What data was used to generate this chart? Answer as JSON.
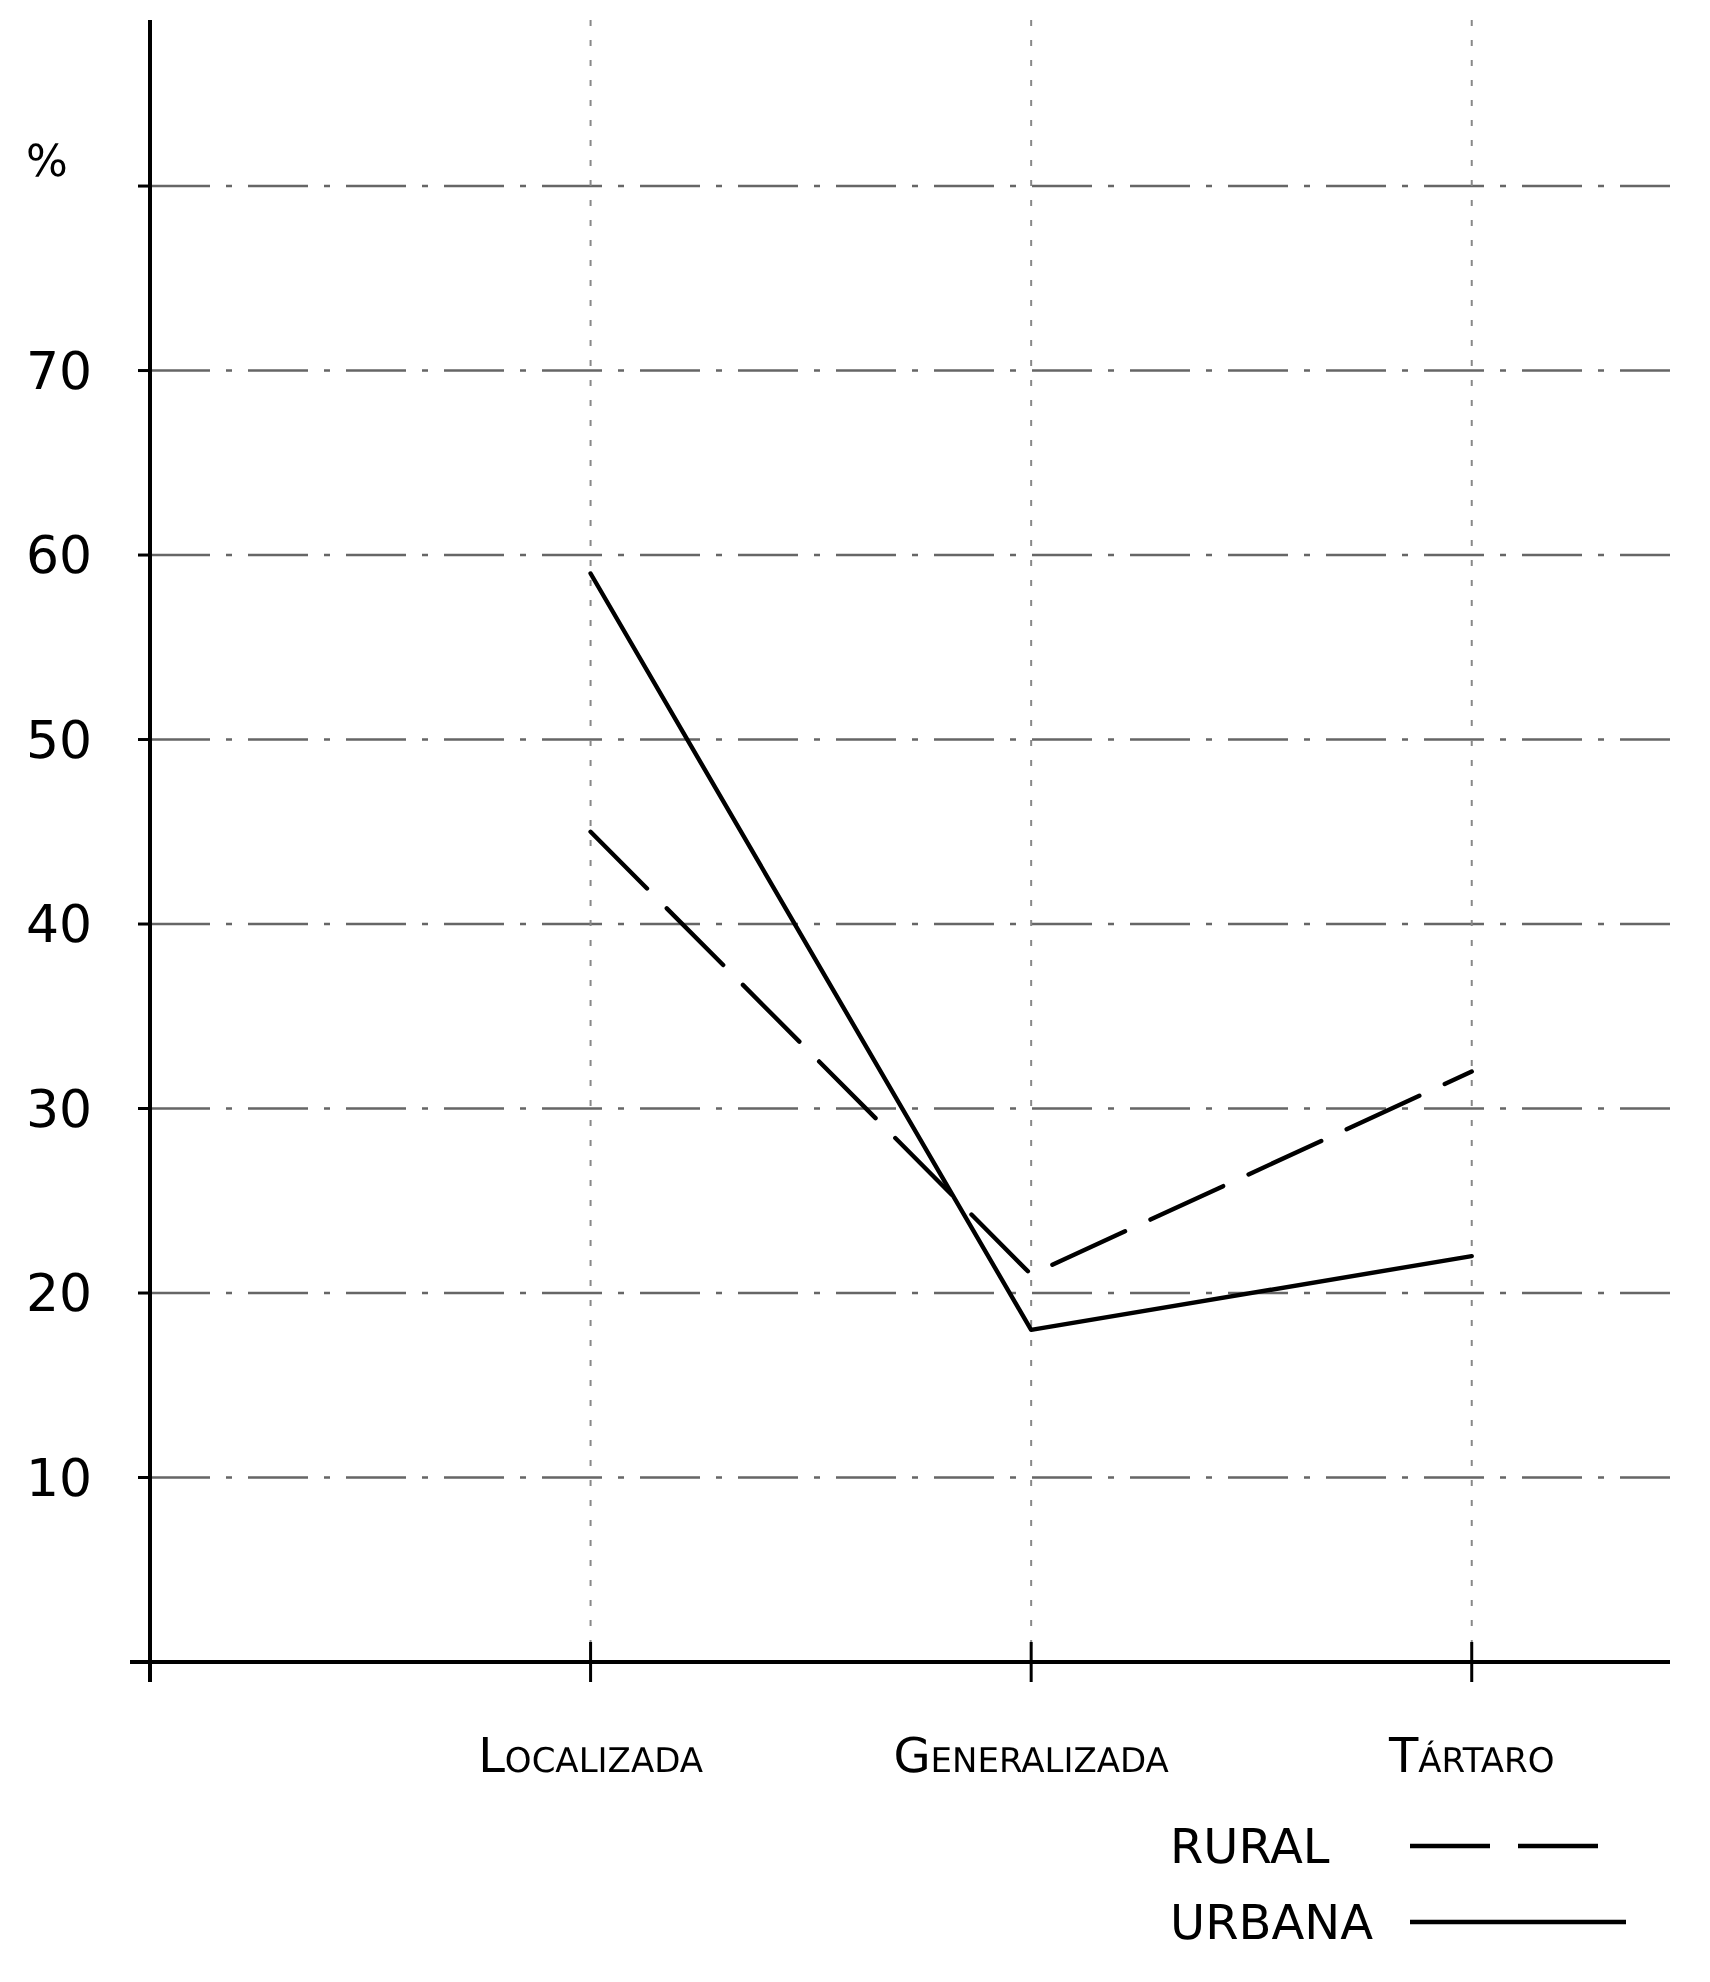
{
  "chart_data": {
    "type": "line",
    "ylabel": "%",
    "categories": [
      "Localizada",
      "Generalizada",
      "Tártaro"
    ],
    "series": [
      {
        "name": "RURAL",
        "color": "#000000",
        "line_style": "dashed",
        "values": [
          45,
          21,
          32
        ]
      },
      {
        "name": "URBANA",
        "color": "#000000",
        "line_style": "solid",
        "values": [
          59,
          18,
          22
        ]
      }
    ],
    "ylim": [
      0,
      89
    ],
    "yticks": [
      10,
      20,
      30,
      40,
      50,
      60,
      70,
      {
        "value": 80,
        "label": null
      }
    ],
    "grid": true,
    "legend": "bottom right",
    "marker": "none"
  }
}
